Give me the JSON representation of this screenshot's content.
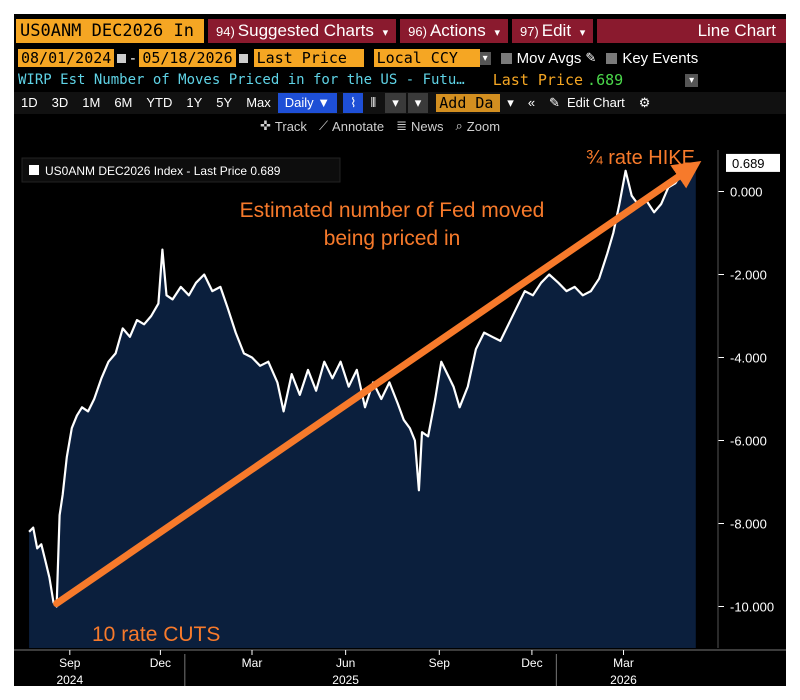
{
  "toolbar": {
    "ticker": "US0ANM DEC2026 In",
    "menus": [
      {
        "num": "94)",
        "label": "Suggested Charts",
        "caret": "▾"
      },
      {
        "num": "96)",
        "label": "Actions",
        "caret": "▾"
      },
      {
        "num": "97)",
        "label": "Edit",
        "caret": "▾"
      }
    ],
    "chart_type": "Line Chart",
    "date_start": "08/01/2024",
    "date_sep": "-",
    "date_end": "05/18/2026",
    "field": "Last Price",
    "currency": "Local CCY",
    "mov_avgs": "Mov Avgs",
    "key_events": "Key Events",
    "security_desc": "WIRP Est Number of Moves Priced in for the US - Futu…",
    "last_price_label": "Last Price",
    "last_price_value": ".689",
    "periods": [
      "1D",
      "3D",
      "1M",
      "6M",
      "YTD",
      "1Y",
      "5Y",
      "Max"
    ],
    "frequency": "Daily ▼",
    "add_data": "Add Da",
    "edit_chart": "Edit Chart",
    "tools": [
      "Track",
      "Annotate",
      "News",
      "Zoom"
    ]
  },
  "chart_data": {
    "type": "area",
    "legend": "US0ANM DEC2026 Index - Last Price 0.689",
    "last_value_label": "0.689",
    "y_ticks": [
      "0.000",
      "-2.000",
      "-4.000",
      "-6.000",
      "-8.000",
      "-10.000"
    ],
    "ylim": [
      -11.0,
      1.0
    ],
    "x_ticks": [
      "Sep",
      "Dec",
      "Mar",
      "Jun",
      "Sep",
      "Dec",
      "Mar"
    ],
    "x_years": [
      "2024",
      "2025",
      "2026"
    ],
    "series": [
      {
        "values": [
          [
            "2024-08-01",
            -8.2
          ],
          [
            "2024-08-05",
            -8.1
          ],
          [
            "2024-08-09",
            -8.6
          ],
          [
            "2024-08-13",
            -8.5
          ],
          [
            "2024-08-17",
            -8.9
          ],
          [
            "2024-08-21",
            -9.3
          ],
          [
            "2024-08-25",
            -9.9
          ],
          [
            "2024-08-28",
            -10.0
          ],
          [
            "2024-08-31",
            -7.8
          ],
          [
            "2024-09-03",
            -7.3
          ],
          [
            "2024-09-07",
            -6.4
          ],
          [
            "2024-09-12",
            -5.7
          ],
          [
            "2024-09-17",
            -5.4
          ],
          [
            "2024-09-22",
            -5.2
          ],
          [
            "2024-09-28",
            -5.3
          ],
          [
            "2024-10-04",
            -5.0
          ],
          [
            "2024-10-11",
            -4.5
          ],
          [
            "2024-10-18",
            -4.1
          ],
          [
            "2024-10-25",
            -3.9
          ],
          [
            "2024-11-01",
            -3.3
          ],
          [
            "2024-11-08",
            -3.5
          ],
          [
            "2024-11-15",
            -3.1
          ],
          [
            "2024-11-22",
            -3.2
          ],
          [
            "2024-11-29",
            -3.0
          ],
          [
            "2024-12-06",
            -2.7
          ],
          [
            "2024-12-10",
            -1.4
          ],
          [
            "2024-12-14",
            -2.5
          ],
          [
            "2024-12-20",
            -2.6
          ],
          [
            "2024-12-28",
            -2.3
          ],
          [
            "2025-01-05",
            -2.5
          ],
          [
            "2025-01-12",
            -2.2
          ],
          [
            "2025-01-20",
            -2.0
          ],
          [
            "2025-01-28",
            -2.4
          ],
          [
            "2025-02-05",
            -2.3
          ],
          [
            "2025-02-12",
            -2.8
          ],
          [
            "2025-02-20",
            -3.4
          ],
          [
            "2025-02-28",
            -3.9
          ],
          [
            "2025-03-08",
            -4.0
          ],
          [
            "2025-03-16",
            -4.2
          ],
          [
            "2025-03-24",
            -4.1
          ],
          [
            "2025-04-02",
            -4.6
          ],
          [
            "2025-04-08",
            -5.3
          ],
          [
            "2025-04-16",
            -4.4
          ],
          [
            "2025-04-24",
            -4.9
          ],
          [
            "2025-05-02",
            -4.3
          ],
          [
            "2025-05-10",
            -4.8
          ],
          [
            "2025-05-18",
            -4.1
          ],
          [
            "2025-05-26",
            -4.5
          ],
          [
            "2025-06-03",
            -4.1
          ],
          [
            "2025-06-11",
            -4.7
          ],
          [
            "2025-06-19",
            -4.3
          ],
          [
            "2025-06-27",
            -5.2
          ],
          [
            "2025-07-05",
            -4.6
          ],
          [
            "2025-07-13",
            -5.0
          ],
          [
            "2025-07-21",
            -4.6
          ],
          [
            "2025-07-29",
            -5.1
          ],
          [
            "2025-08-04",
            -5.5
          ],
          [
            "2025-08-10",
            -5.7
          ],
          [
            "2025-08-15",
            -6.0
          ],
          [
            "2025-08-19",
            -7.2
          ],
          [
            "2025-08-22",
            -5.8
          ],
          [
            "2025-08-28",
            -5.9
          ],
          [
            "2025-09-04",
            -5.0
          ],
          [
            "2025-09-10",
            -4.1
          ],
          [
            "2025-09-16",
            -4.4
          ],
          [
            "2025-09-22",
            -4.7
          ],
          [
            "2025-09-28",
            -5.2
          ],
          [
            "2025-10-06",
            -4.7
          ],
          [
            "2025-10-14",
            -3.8
          ],
          [
            "2025-10-22",
            -3.4
          ],
          [
            "2025-10-30",
            -3.5
          ],
          [
            "2025-11-07",
            -3.6
          ],
          [
            "2025-11-15",
            -3.2
          ],
          [
            "2025-11-23",
            -2.8
          ],
          [
            "2025-12-01",
            -2.4
          ],
          [
            "2025-12-09",
            -2.5
          ],
          [
            "2025-12-17",
            -2.2
          ],
          [
            "2025-12-25",
            -2.0
          ],
          [
            "2026-01-03",
            -2.2
          ],
          [
            "2026-01-11",
            -2.4
          ],
          [
            "2026-01-19",
            -2.3
          ],
          [
            "2026-01-27",
            -2.5
          ],
          [
            "2026-02-04",
            -2.4
          ],
          [
            "2026-02-12",
            -2.1
          ],
          [
            "2026-02-20",
            -1.5
          ],
          [
            "2026-02-26",
            -1.0
          ],
          [
            "2026-03-04",
            -0.3
          ],
          [
            "2026-03-10",
            0.5
          ],
          [
            "2026-03-16",
            -0.1
          ],
          [
            "2026-03-22",
            -0.3
          ],
          [
            "2026-03-30",
            -0.2
          ],
          [
            "2026-04-07",
            -0.5
          ],
          [
            "2026-04-14",
            -0.3
          ],
          [
            "2026-04-21",
            0.1
          ],
          [
            "2026-04-28",
            0.2
          ],
          [
            "2026-05-06",
            0.5
          ],
          [
            "2026-05-12",
            0.4
          ],
          [
            "2026-05-18",
            0.689
          ]
        ]
      }
    ],
    "annotations": {
      "title_note": [
        "Estimated number of Fed moved",
        "being priced in"
      ],
      "start_note": "10 rate CUTS",
      "end_note": "¾ rate HIKE"
    }
  },
  "colors": {
    "background": "#000000",
    "area_fill": "#0b1f3d",
    "line": "#ffffff",
    "arrow": "#f77a2b",
    "accent": "#f5a623"
  },
  "icons": [
    "pencil-icon",
    "gear-icon",
    "chart-icon",
    "crosshair-icon",
    "zoom-icon"
  ]
}
